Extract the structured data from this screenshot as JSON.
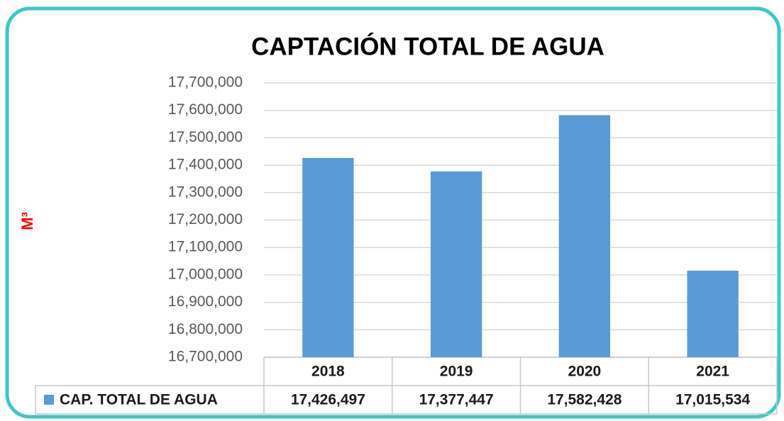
{
  "chart_data": {
    "type": "bar",
    "title": "CAPTACIÓN TOTAL DE AGUA",
    "y_label": "M³",
    "categories": [
      "2018",
      "2019",
      "2020",
      "2021"
    ],
    "series": [
      {
        "name": "CAP. TOTAL DE AGUA",
        "color": "#5b9bd5",
        "values": [
          17426497,
          17377447,
          17582428,
          17015534
        ],
        "value_labels": [
          "17,426,497",
          "17,377,447",
          "17,582,428",
          "17,015,534"
        ]
      }
    ],
    "ylim": [
      16700000,
      17700000
    ],
    "yticks": [
      {
        "value": 16700000,
        "label": "16,700,000"
      },
      {
        "value": 16800000,
        "label": "16,800,000"
      },
      {
        "value": 16900000,
        "label": "16,900,000"
      },
      {
        "value": 17000000,
        "label": "17,000,000"
      },
      {
        "value": 17100000,
        "label": "17,100,000"
      },
      {
        "value": 17200000,
        "label": "17,200,000"
      },
      {
        "value": 17300000,
        "label": "17,300,000"
      },
      {
        "value": 17400000,
        "label": "17,400,000"
      },
      {
        "value": 17500000,
        "label": "17,500,000"
      },
      {
        "value": 17600000,
        "label": "17,600,000"
      },
      {
        "value": 17700000,
        "label": "17,700,000"
      }
    ],
    "grid": true
  }
}
